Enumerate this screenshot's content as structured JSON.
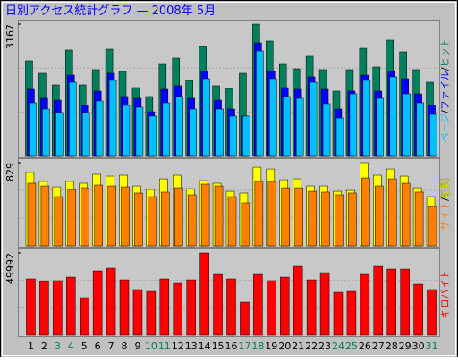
{
  "title": "日別アクセス統計グラフ — 2008年 5月",
  "chart_data": [
    {
      "type": "bar",
      "ylim": [
        0,
        3167
      ],
      "yticks": [
        3167
      ],
      "legend_separator": "/",
      "series": [
        {
          "name": "ページ",
          "color": "#00c0ff",
          "values": [
            1284,
            1134,
            1049,
            1776,
            1049,
            1327,
            1819,
            1220,
            1177,
            963,
            1284,
            1434,
            1134,
            1862,
            1134,
            963,
            963,
            2525,
            1862,
            1434,
            1391,
            1776,
            1263,
            920,
            1498,
            1819,
            1391,
            1905,
            1498,
            1284,
            1006
          ]
        },
        {
          "name": "ファイル",
          "color": "#0000ff",
          "values": [
            1605,
            1391,
            1348,
            1947,
            1220,
            1562,
            1990,
            1434,
            1391,
            1070,
            1605,
            1691,
            1391,
            2033,
            1348,
            1134,
            963,
            2718,
            2033,
            1648,
            1605,
            1905,
            1605,
            1134,
            1562,
            1947,
            1562,
            2033,
            1862,
            1498,
            1220
          ]
        },
        {
          "name": "ヒット",
          "color": "#00805c",
          "values": [
            2290,
            1990,
            1712,
            2547,
            1712,
            2076,
            2568,
            2033,
            1648,
            1434,
            2204,
            2354,
            1819,
            2632,
            1691,
            1626,
            1990,
            3167,
            2761,
            2204,
            2097,
            2397,
            2076,
            1562,
            2076,
            2589,
            2140,
            2782,
            2504,
            2076,
            1776
          ]
        }
      ]
    },
    {
      "type": "bar",
      "ylim": [
        0,
        829
      ],
      "yticks": [
        829
      ],
      "legend_separator": "/",
      "series": [
        {
          "name": "サイト",
          "color": "#ff8000",
          "values": [
            624,
            597,
            490,
            561,
            579,
            606,
            597,
            588,
            526,
            490,
            535,
            579,
            508,
            615,
            597,
            490,
            428,
            642,
            642,
            579,
            579,
            543,
            535,
            508,
            526,
            677,
            597,
            668,
            624,
            535,
            392
          ]
        },
        {
          "name": "訪問",
          "color": "#ffff00",
          "values": [
            731,
            642,
            588,
            642,
            624,
            713,
            695,
            704,
            597,
            561,
            668,
            704,
            570,
            650,
            624,
            543,
            526,
            784,
            766,
            659,
            668,
            597,
            597,
            543,
            552,
            829,
            704,
            766,
            695,
            579,
            490
          ]
        }
      ]
    },
    {
      "type": "bar",
      "ylim": [
        0,
        49992
      ],
      "yticks": [
        49992
      ],
      "categories": [
        "1",
        "2",
        "3",
        "4",
        "5",
        "6",
        "7",
        "8",
        "9",
        "10",
        "11",
        "12",
        "13",
        "14",
        "15",
        "16",
        "17",
        "18",
        "19",
        "20",
        "21",
        "22",
        "23",
        "24",
        "25",
        "26",
        "27",
        "28",
        "29",
        "30",
        "31"
      ],
      "label_colors": [
        "#000000",
        "#000000",
        "#008060",
        "#008060",
        "#000000",
        "#000000",
        "#000000",
        "#000000",
        "#000000",
        "#008060",
        "#008060",
        "#000000",
        "#000000",
        "#000000",
        "#000000",
        "#000000",
        "#008060",
        "#008060",
        "#000000",
        "#000000",
        "#000000",
        "#000000",
        "#000000",
        "#008060",
        "#008060",
        "#000000",
        "#000000",
        "#000000",
        "#000000",
        "#000000",
        "#008060"
      ],
      "series": [
        {
          "name": "キロバイト",
          "color": "#ff0000",
          "values": [
            34209,
            32580,
            33123,
            35295,
            22806,
            39096,
            40725,
            33666,
            27693,
            26607,
            34209,
            31494,
            33666,
            49992,
            36924,
            34209,
            20091,
            36924,
            33123,
            35295,
            41811,
            33666,
            38010,
            26064,
            26607,
            36924,
            41811,
            40182,
            40182,
            30951,
            27693
          ]
        }
      ]
    }
  ]
}
